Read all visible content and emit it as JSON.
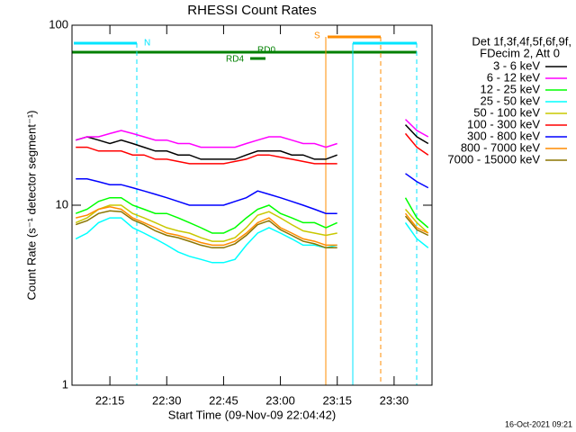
{
  "chart_data": {
    "type": "line",
    "title": "RHESSI Count Rates",
    "x_label": "Start Time (09-Nov-09 22:04:42)",
    "y_label": "Count Rate (s⁻¹ detector segment⁻¹)",
    "legend_title": [
      "Det 1f,3f,4f,5f,6f,9f,",
      "FDecim 2, Att 0"
    ],
    "footer": "16-Oct-2021 09:21",
    "annotations": [
      "N",
      "RD0",
      "RD4",
      "S"
    ],
    "log_scale": true,
    "xlim": [
      "22:05",
      "23:40"
    ],
    "xticks": [
      "22:15",
      "22:30",
      "22:45",
      "23:00",
      "23:15",
      "23:30"
    ],
    "ylim": [
      1,
      100
    ],
    "yticks": [
      1,
      10,
      100
    ],
    "x": [
      "22:06",
      "22:09",
      "22:12",
      "22:15",
      "22:18",
      "22:21",
      "22:24",
      "22:27",
      "22:30",
      "22:33",
      "22:36",
      "22:39",
      "22:42",
      "22:45",
      "22:48",
      "22:51",
      "22:54",
      "22:57",
      "23:00",
      "23:03",
      "23:06",
      "23:09",
      "23:12",
      "23:15",
      "23:18",
      "23:33",
      "23:36",
      "23:39"
    ],
    "series": [
      {
        "name": "3 - 6 keV",
        "color": "#000000",
        "values": [
          23,
          24,
          23,
          22,
          23,
          22,
          21,
          20,
          20,
          19,
          19,
          18,
          18,
          18,
          18,
          19,
          20,
          20,
          20,
          19,
          19,
          18,
          18,
          19,
          null,
          28,
          24,
          22
        ]
      },
      {
        "name": "6 - 12 keV",
        "color": "#ff00ff",
        "values": [
          23,
          24,
          24,
          25,
          26,
          25,
          24,
          23,
          23,
          22,
          22,
          21,
          21,
          21,
          21,
          22,
          23,
          24,
          24,
          23,
          22,
          22,
          21,
          22,
          null,
          30,
          26,
          24
        ]
      },
      {
        "name": "12 - 25 keV",
        "color": "#00ff00",
        "values": [
          9,
          9.5,
          10.5,
          11,
          11,
          10,
          9.5,
          9,
          9,
          8.5,
          8,
          7.5,
          7,
          7,
          7.5,
          8.5,
          9.5,
          10,
          9,
          8.5,
          8,
          8,
          7.5,
          8,
          null,
          11,
          8.5,
          7.5
        ]
      },
      {
        "name": "25 - 50 keV",
        "color": "#00ffff",
        "values": [
          6.5,
          7,
          8,
          8.5,
          8.5,
          7.5,
          7,
          6.5,
          6,
          5.5,
          5.2,
          5,
          4.8,
          4.8,
          5,
          6,
          7,
          7.5,
          7,
          6.5,
          6,
          6,
          5.8,
          6,
          null,
          8,
          6.5,
          5.8
        ]
      },
      {
        "name": "50 - 100 keV",
        "color": "#c8c800",
        "values": [
          8,
          8.5,
          9.5,
          10,
          10,
          9,
          8.5,
          8,
          7.5,
          7.2,
          7,
          6.6,
          6.3,
          6.3,
          6.6,
          7.5,
          8.8,
          9.2,
          8.5,
          7.8,
          7.2,
          7,
          6.8,
          7,
          null,
          9.5,
          8,
          7
        ]
      },
      {
        "name": "100 - 300 keV",
        "color": "#ff0000",
        "values": [
          21,
          21,
          20,
          20,
          20,
          19,
          19,
          18,
          18,
          17.5,
          17,
          17,
          17,
          17,
          17.5,
          18,
          19,
          19,
          18.5,
          18,
          17.5,
          17,
          17,
          17,
          null,
          25,
          21,
          19
        ]
      },
      {
        "name": "300 - 800 keV",
        "color": "#0000ff",
        "values": [
          14,
          14,
          13.5,
          13,
          13,
          12.5,
          12,
          11.5,
          11,
          10.5,
          10,
          10,
          10,
          10,
          10.5,
          11,
          12,
          11.5,
          11,
          10.5,
          10,
          9.5,
          9,
          9,
          null,
          15,
          13.5,
          12.5
        ]
      },
      {
        "name": "800 - 7000 keV",
        "color": "#ff8c00",
        "values": [
          8.5,
          8.8,
          9.5,
          9.8,
          9.5,
          8.5,
          8,
          7.5,
          7,
          6.8,
          6.5,
          6.2,
          6,
          6,
          6.3,
          7,
          8,
          8.5,
          7.5,
          7,
          6.5,
          6.3,
          6,
          6,
          null,
          9,
          7.5,
          7
        ]
      },
      {
        "name": "7000 - 15000 keV",
        "color": "#8b7500",
        "values": [
          7.8,
          8.2,
          9,
          9.3,
          9.2,
          8.3,
          7.8,
          7.2,
          6.8,
          6.6,
          6.3,
          6,
          5.8,
          5.8,
          6.1,
          6.8,
          7.8,
          8.2,
          7.3,
          6.8,
          6.3,
          6.1,
          5.8,
          5.8,
          null,
          8.7,
          7.3,
          6.8
        ]
      }
    ]
  }
}
